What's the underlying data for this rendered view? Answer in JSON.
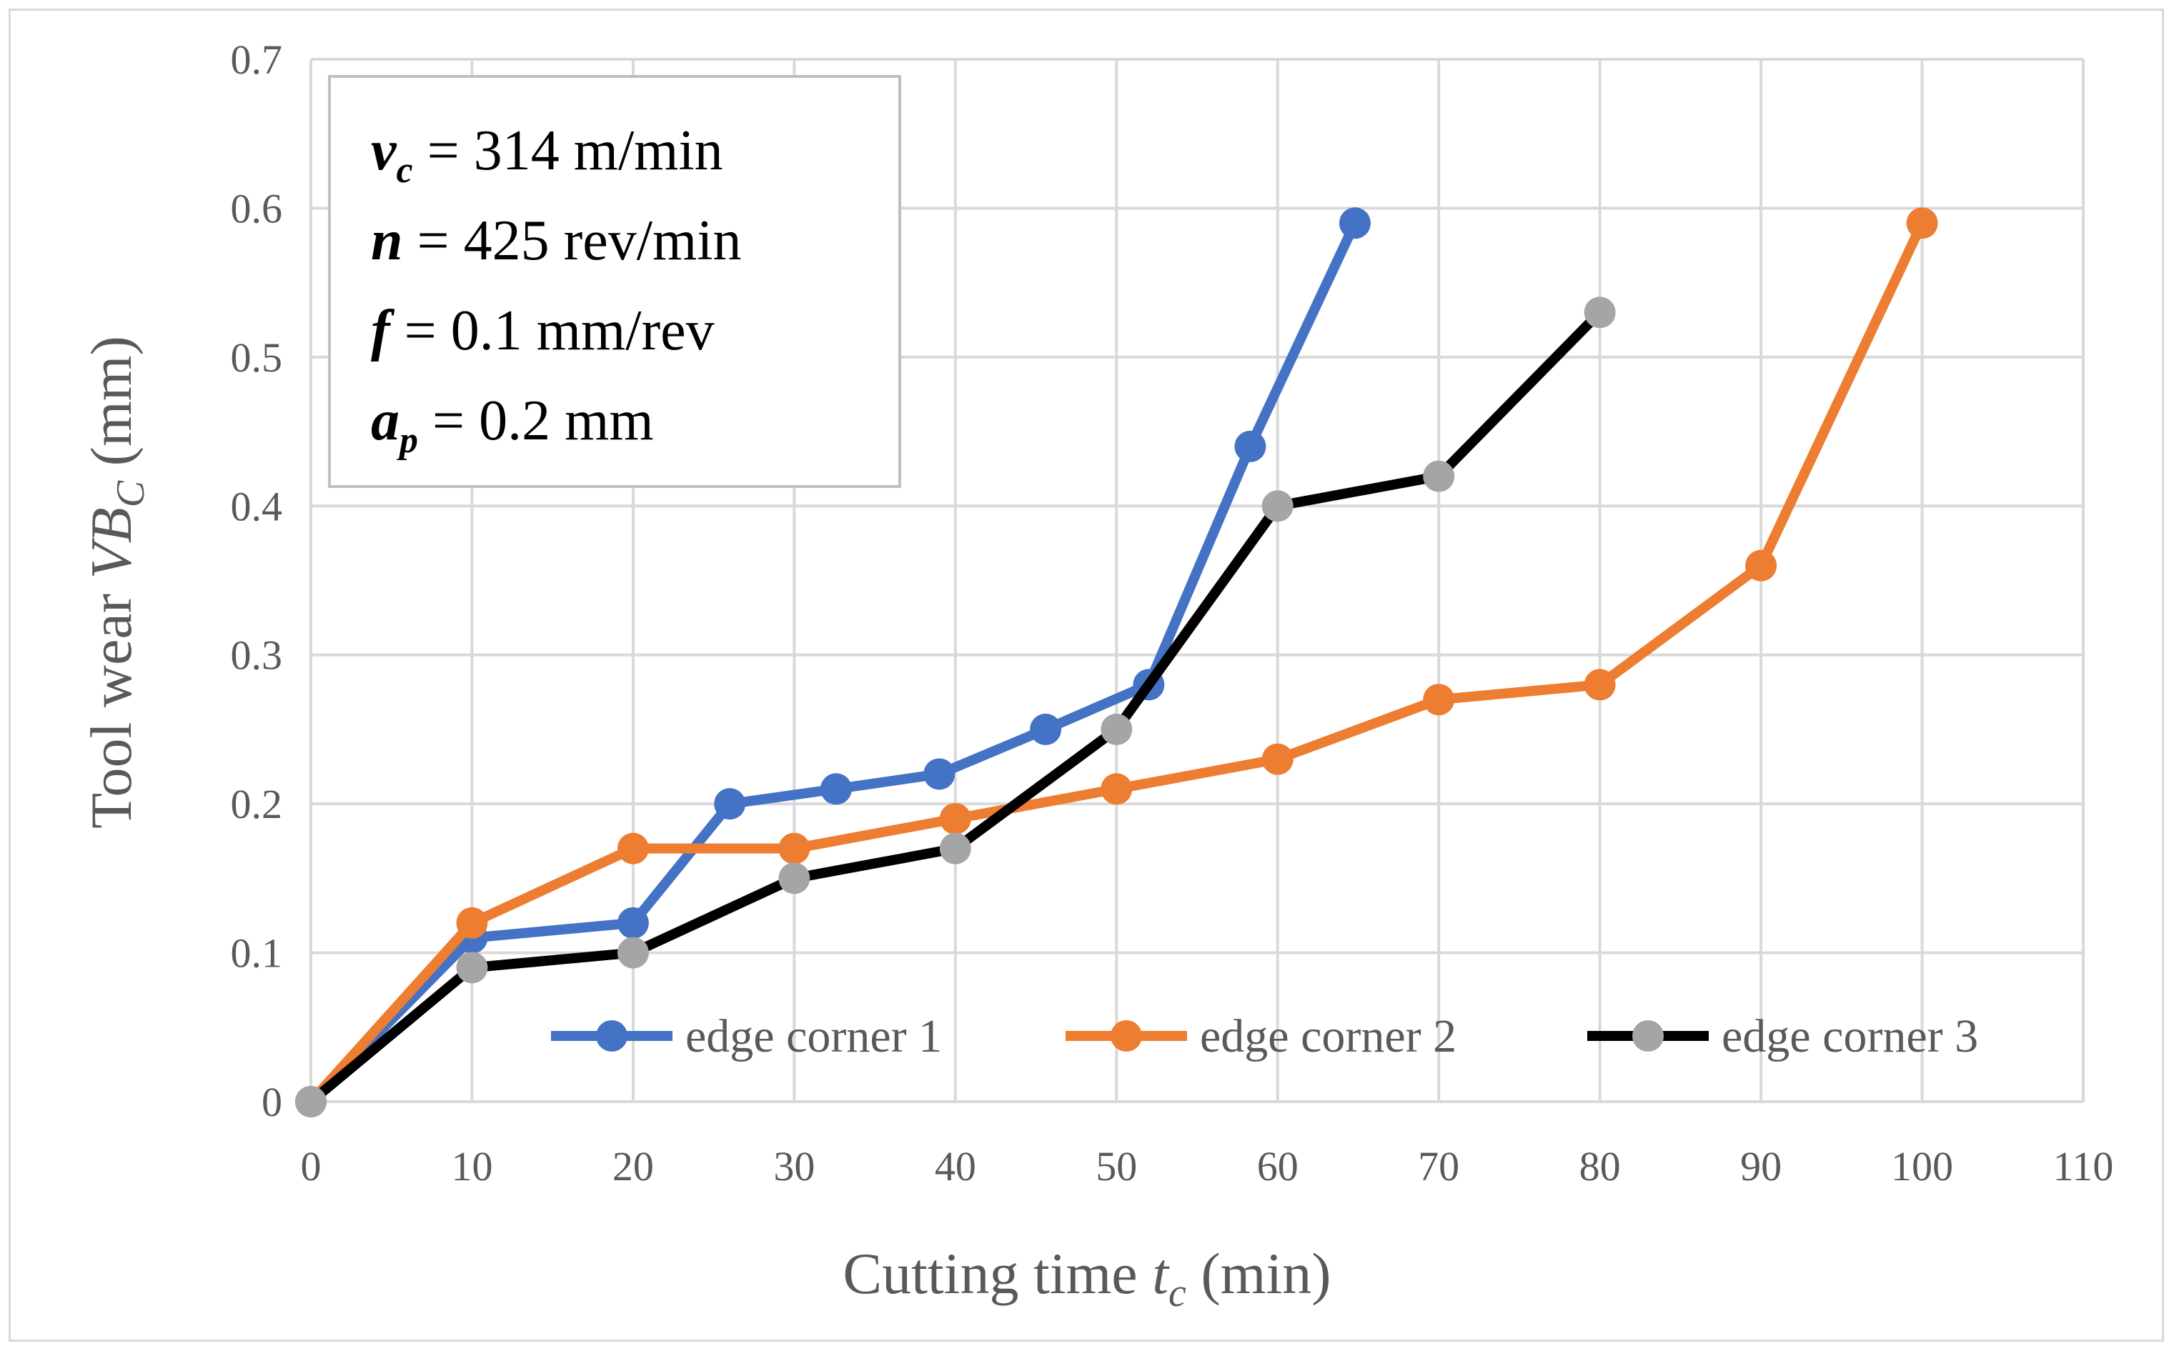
{
  "chart_data": {
    "type": "line",
    "title": "",
    "xlabel": {
      "prefix": "Cutting time ",
      "var": "t",
      "sub": "c",
      "suffix": " (min)"
    },
    "ylabel": {
      "prefix": "Tool wear ",
      "var": "VB",
      "sub": "C",
      "suffix": " (mm)"
    },
    "xlim": [
      0,
      110
    ],
    "ylim": [
      0,
      0.7
    ],
    "xticks": [
      "0",
      "10",
      "20",
      "30",
      "40",
      "50",
      "60",
      "70",
      "80",
      "90",
      "100",
      "110"
    ],
    "yticks": [
      "0",
      "0.1",
      "0.2",
      "0.3",
      "0.4",
      "0.5",
      "0.6",
      "0.7"
    ],
    "grid": true,
    "legend_position": "bottom-right",
    "series": [
      {
        "name": "edge corner 1",
        "color": "#4472c4",
        "x": [
          0,
          10,
          20,
          26,
          32.6,
          39,
          45.6,
          52,
          58.3,
          64.8
        ],
        "y": [
          0,
          0.11,
          0.12,
          0.2,
          0.21,
          0.22,
          0.25,
          0.28,
          0.44,
          0.59
        ]
      },
      {
        "name": "edge corner 2",
        "color": "#ed7d31",
        "x": [
          0,
          10,
          20,
          30,
          40,
          50,
          60,
          70,
          80,
          90,
          100
        ],
        "y": [
          0,
          0.12,
          0.17,
          0.17,
          0.19,
          0.21,
          0.23,
          0.27,
          0.28,
          0.36,
          0.59
        ]
      },
      {
        "name": "edge corner 3",
        "color": "#000000",
        "marker_color": "#a5a5a5",
        "x": [
          0,
          10,
          20,
          30,
          40,
          50,
          60,
          70,
          80
        ],
        "y": [
          0,
          0.09,
          0.1,
          0.15,
          0.17,
          0.25,
          0.4,
          0.42,
          0.53
        ]
      }
    ],
    "annotation": [
      {
        "var": "v",
        "sub": "c",
        "text": " = 314 m/min"
      },
      {
        "var": "n",
        "sub": "",
        "text": " = 425 rev/min"
      },
      {
        "var": "f",
        "sub": "",
        "text": " = 0.1 mm/rev"
      },
      {
        "var": "a",
        "sub": "p",
        "text": " = 0.2 mm"
      }
    ]
  }
}
